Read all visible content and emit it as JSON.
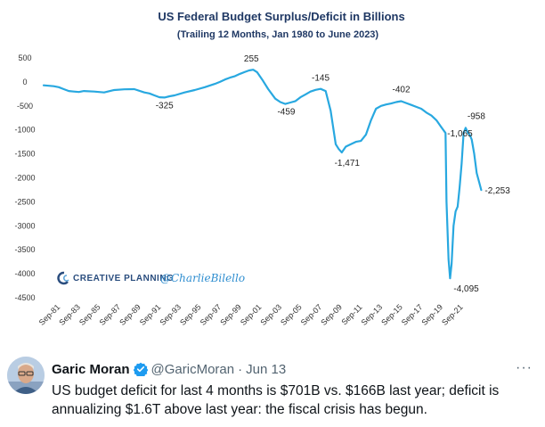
{
  "chart_data": {
    "type": "line",
    "title": "US Federal Budget Surplus/Deficit in Billions",
    "subtitle": "(Trailing  12 Months, Jan 1980 to June 2023)",
    "xlabel": "",
    "ylabel": "",
    "ylim": [
      -4500,
      500
    ],
    "yticks": [
      500,
      0,
      -500,
      -1000,
      -1500,
      -2000,
      -2500,
      -3000,
      -3500,
      -4000,
      -4500
    ],
    "ytick_labels": [
      "500",
      "0",
      "-500",
      "-1000",
      "-1500",
      "-2000",
      "-2500",
      "-3000",
      "-3500",
      "-4000",
      "-4500"
    ],
    "xticks": [
      1981.67,
      1983.67,
      1985.67,
      1987.67,
      1989.67,
      1991.67,
      1993.67,
      1995.67,
      1997.67,
      1999.67,
      2001.67,
      2003.67,
      2005.67,
      2007.67,
      2009.67,
      2011.67,
      2013.67,
      2015.67,
      2017.67,
      2019.67,
      2021.67
    ],
    "xtick_labels": [
      "Sep-81",
      "Sep-83",
      "Sep-85",
      "Sep-87",
      "Sep-89",
      "Sep-91",
      "Sep-93",
      "Sep-95",
      "Sep-97",
      "Sep-99",
      "Sep-01",
      "Sep-03",
      "Sep-05",
      "Sep-07",
      "Sep-09",
      "Sep-11",
      "Sep-13",
      "Sep-15",
      "Sep-17",
      "Sep-19",
      "Sep-21"
    ],
    "xlim": [
      1980.0,
      2023.5
    ],
    "grid": false,
    "legend": "none",
    "series": [
      {
        "color": "#28a8e0",
        "x": [
          1980.0,
          1980.5,
          1981.0,
          1981.5,
          1982.0,
          1982.5,
          1983.0,
          1983.5,
          1984.0,
          1985.0,
          1986.0,
          1987.0,
          1988.0,
          1989.0,
          1990.0,
          1990.5,
          1991.0,
          1991.5,
          1992.0,
          1992.5,
          1993.0,
          1994.0,
          1995.0,
          1996.0,
          1997.0,
          1997.5,
          1998.0,
          1998.5,
          1999.0,
          1999.5,
          2000.0,
          2000.4,
          2000.8,
          2001.2,
          2001.7,
          2002.3,
          2003.0,
          2003.5,
          2004.0,
          2004.5,
          2005.0,
          2005.5,
          2006.0,
          2006.5,
          2007.0,
          2007.5,
          2008.0,
          2008.5,
          2009.0,
          2009.3,
          2009.6,
          2010.0,
          2010.5,
          2011.0,
          2011.5,
          2012.0,
          2012.5,
          2013.0,
          2013.5,
          2014.0,
          2014.5,
          2015.0,
          2015.5,
          2016.0,
          2016.5,
          2017.0,
          2017.5,
          2018.0,
          2018.5,
          2019.0,
          2019.5,
          2019.9,
          2020.0,
          2020.2,
          2020.35,
          2020.5,
          2020.7,
          2020.9,
          2021.1,
          2021.3,
          2021.5,
          2021.7,
          2021.9,
          2022.1,
          2022.3,
          2022.5,
          2022.75,
          2023.0,
          2023.25,
          2023.45
        ],
        "y": [
          -70,
          -80,
          -90,
          -110,
          -150,
          -190,
          -200,
          -210,
          -190,
          -200,
          -220,
          -170,
          -155,
          -150,
          -220,
          -240,
          -280,
          -320,
          -325,
          -300,
          -280,
          -220,
          -170,
          -110,
          -40,
          0,
          50,
          90,
          120,
          170,
          210,
          240,
          255,
          200,
          50,
          -150,
          -350,
          -420,
          -459,
          -430,
          -400,
          -320,
          -260,
          -200,
          -165,
          -145,
          -190,
          -600,
          -1300,
          -1400,
          -1471,
          -1350,
          -1300,
          -1250,
          -1230,
          -1100,
          -800,
          -560,
          -500,
          -470,
          -450,
          -420,
          -402,
          -440,
          -480,
          -520,
          -560,
          -640,
          -700,
          -800,
          -950,
          -1065,
          -2500,
          -3700,
          -4095,
          -3800,
          -3000,
          -2700,
          -2600,
          -2200,
          -1700,
          -1065,
          -958,
          -1050,
          -1100,
          -1200,
          -1500,
          -1900,
          -2100,
          -2253
        ]
      }
    ],
    "annotations": [
      {
        "text": "255",
        "x": 2000.8,
        "y": 255
      },
      {
        "text": "-325",
        "x": 1992.0,
        "y": -325
      },
      {
        "text": "-459",
        "x": 2004.0,
        "y": -459
      },
      {
        "text": "-145",
        "x": 2007.5,
        "y": -145
      },
      {
        "text": "-1,471",
        "x": 2009.6,
        "y": -1471
      },
      {
        "text": "-402",
        "x": 2015.5,
        "y": -402
      },
      {
        "text": "-1,065",
        "x": 2019.9,
        "y": -1065
      },
      {
        "text": "-958",
        "x": 2021.9,
        "y": -958
      },
      {
        "text": "-4,095",
        "x": 2020.35,
        "y": -4095
      },
      {
        "text": "-2,253",
        "x": 2023.45,
        "y": -2253
      }
    ],
    "watermark": {
      "logo_text": "CREATIVE PLANNING",
      "handle": "@CharlieBilello"
    }
  },
  "tweet": {
    "author_name": "Garic Moran",
    "handle": "@GaricMoran",
    "separator": "·",
    "date": "Jun 13",
    "more": "···",
    "text": "US budget deficit for last 4 months is $701B vs. $166B last year; deficit is annualizing $1.6T above last year: the fiscal crisis has begun.",
    "verified_color": "#1d9bf0"
  }
}
